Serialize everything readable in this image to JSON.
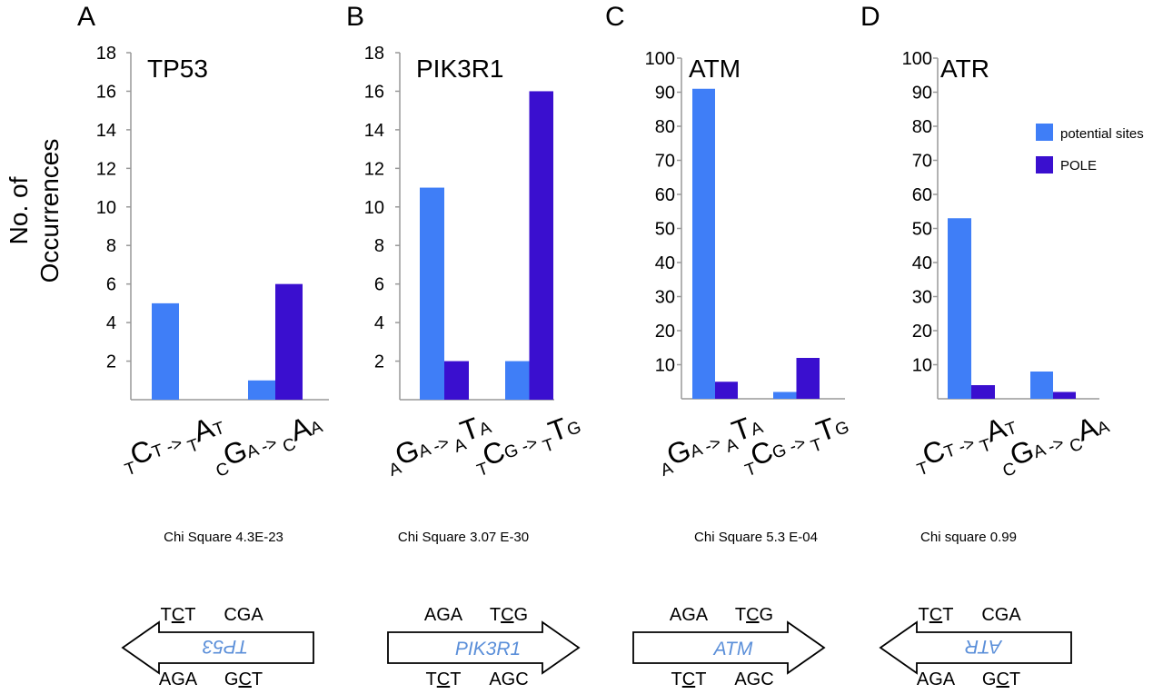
{
  "colors": {
    "potential_sites": "#3f7ef7",
    "pole": "#3a0fcf",
    "axis": "#999999",
    "gene_text": "#5b8fd9"
  },
  "y_axis_label": [
    "No. of",
    "Occurrences"
  ],
  "legend": [
    {
      "label": "potential sites",
      "color": "#3f7ef7"
    },
    {
      "label": "POLE",
      "color": "#3a0fcf"
    }
  ],
  "chart_data": [
    {
      "type": "bar",
      "panel": "A",
      "title": "TP53",
      "ylim": [
        0,
        18
      ],
      "yticks": [
        2,
        4,
        6,
        8,
        10,
        12,
        14,
        16,
        18
      ],
      "categories": [
        {
          "small1": "T",
          "big1": "C",
          "small2": "T",
          "arrow": " -> ",
          "small3": "T",
          "big2": "A",
          "small4": "T"
        },
        {
          "small1": "C",
          "big1": "G",
          "small2": "A",
          "arrow": " -> ",
          "small3": "C",
          "big2": "A",
          "small4": "A"
        }
      ],
      "series": [
        {
          "name": "potential sites",
          "values": [
            5,
            1
          ]
        },
        {
          "name": "POLE",
          "values": [
            0,
            6
          ]
        }
      ],
      "chi": "Chi Square 4.3E-23",
      "gene": {
        "name": "TP53",
        "direction": "left",
        "top": [
          "TCT",
          "CGA"
        ],
        "bottom": [
          "AGA",
          "GCT"
        ],
        "top_underline": [
          1,
          -1
        ],
        "bottom_underline": [
          -1,
          1
        ]
      }
    },
    {
      "type": "bar",
      "panel": "B",
      "title": "PIK3R1",
      "ylim": [
        0,
        18
      ],
      "yticks": [
        2,
        4,
        6,
        8,
        10,
        12,
        14,
        16,
        18
      ],
      "categories": [
        {
          "small1": "A",
          "big1": "G",
          "small2": "A",
          "arrow": " -> ",
          "small3": "A",
          "big2": "T",
          "small4": "A"
        },
        {
          "small1": "T",
          "big1": "C",
          "small2": "G",
          "arrow": " -> ",
          "small3": "T",
          "big2": "T",
          "small4": "G"
        }
      ],
      "series": [
        {
          "name": "potential sites",
          "values": [
            11,
            2
          ]
        },
        {
          "name": "POLE",
          "values": [
            2,
            16
          ]
        }
      ],
      "chi": "Chi Square 3.07 E-30",
      "gene": {
        "name": "PIK3R1",
        "direction": "right",
        "top": [
          "AGA",
          "TCG"
        ],
        "bottom": [
          "TCT",
          "AGC"
        ],
        "top_underline": [
          -1,
          1
        ],
        "bottom_underline": [
          1,
          -1
        ]
      }
    },
    {
      "type": "bar",
      "panel": "C",
      "title": "ATM",
      "ylim": [
        0,
        100
      ],
      "yticks": [
        10,
        20,
        30,
        40,
        50,
        60,
        70,
        80,
        90,
        100
      ],
      "categories": [
        {
          "small1": "A",
          "big1": "G",
          "small2": "A",
          "arrow": " -> ",
          "small3": "A",
          "big2": "T",
          "small4": "A"
        },
        {
          "small1": "T",
          "big1": "C",
          "small2": "G",
          "arrow": " -> ",
          "small3": "T",
          "big2": "T",
          "small4": "G"
        }
      ],
      "series": [
        {
          "name": "potential sites",
          "values": [
            91,
            2
          ]
        },
        {
          "name": "POLE",
          "values": [
            5,
            12
          ]
        }
      ],
      "chi": "Chi  Square 5.3 E-04",
      "gene": {
        "name": "ATM",
        "direction": "right",
        "top": [
          "AGA",
          "TCG"
        ],
        "bottom": [
          "TCT",
          "AGC"
        ],
        "top_underline": [
          -1,
          1
        ],
        "bottom_underline": [
          1,
          -1
        ]
      }
    },
    {
      "type": "bar",
      "panel": "D",
      "title": "ATR",
      "ylim": [
        0,
        100
      ],
      "yticks": [
        10,
        20,
        30,
        40,
        50,
        60,
        70,
        80,
        90,
        100
      ],
      "categories": [
        {
          "small1": "T",
          "big1": "C",
          "small2": "T",
          "arrow": " -> ",
          "small3": "T",
          "big2": "A",
          "small4": "T"
        },
        {
          "small1": "C",
          "big1": "G",
          "small2": "A",
          "arrow": " -> ",
          "small3": "C",
          "big2": "A",
          "small4": "A"
        }
      ],
      "series": [
        {
          "name": "potential sites",
          "values": [
            53,
            8
          ]
        },
        {
          "name": "POLE",
          "values": [
            4,
            2
          ]
        }
      ],
      "chi": "Chi square 0.99",
      "gene": {
        "name": "ATR",
        "direction": "left",
        "top": [
          "TCT",
          "CGA"
        ],
        "bottom": [
          "AGA",
          "GCT"
        ],
        "top_underline": [
          1,
          -1
        ],
        "bottom_underline": [
          -1,
          1
        ]
      }
    }
  ]
}
